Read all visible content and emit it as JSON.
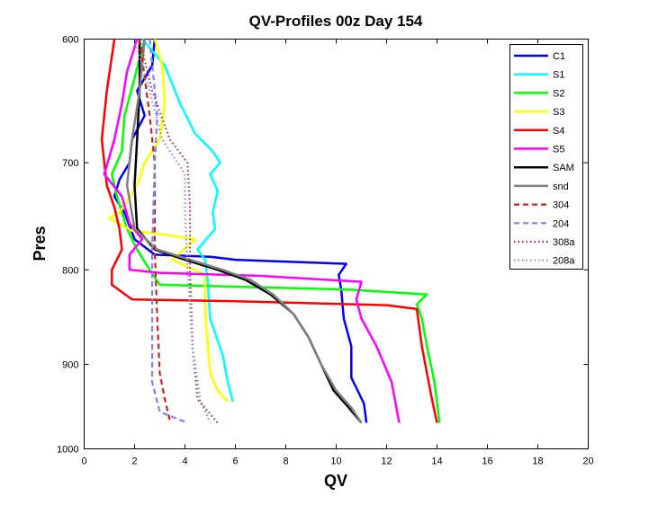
{
  "chart_data": {
    "type": "line",
    "title": "QV-Profiles 00z Day 154",
    "xlabel": "QV",
    "ylabel": "Pres",
    "xlim": [
      0,
      20
    ],
    "ylim": [
      1000,
      600
    ],
    "y_scale": "log",
    "y_inverted": true,
    "grid": false,
    "legend_position": "top-right",
    "xticks": [
      "0",
      "2",
      "4",
      "6",
      "8",
      "10",
      "12",
      "14",
      "16",
      "18",
      "20"
    ],
    "yticks": [
      "600",
      "700",
      "800",
      "900",
      "1000"
    ],
    "series": [
      {
        "name": "C1",
        "color": "#0000ff",
        "dash": "solid",
        "points": [
          [
            2.8,
            600
          ],
          [
            2.7,
            620
          ],
          [
            2.1,
            640
          ],
          [
            2.4,
            660
          ],
          [
            1.9,
            680
          ],
          [
            1.8,
            700
          ],
          [
            1.4,
            715
          ],
          [
            1.2,
            730
          ],
          [
            1.6,
            745
          ],
          [
            2.0,
            770
          ],
          [
            2.8,
            785
          ],
          [
            5.0,
            787
          ],
          [
            6.0,
            790
          ],
          [
            10.4,
            794
          ],
          [
            10.1,
            805
          ],
          [
            10.2,
            820
          ],
          [
            10.3,
            850
          ],
          [
            10.6,
            880
          ],
          [
            10.6,
            915
          ],
          [
            11.1,
            945
          ],
          [
            11.2,
            968
          ]
        ]
      },
      {
        "name": "S1",
        "color": "#00ffff",
        "dash": "solid",
        "points": [
          [
            2.3,
            600
          ],
          [
            3.2,
            620
          ],
          [
            3.8,
            650
          ],
          [
            4.4,
            675
          ],
          [
            5.1,
            690
          ],
          [
            5.4,
            700
          ],
          [
            5.0,
            710
          ],
          [
            5.3,
            725
          ],
          [
            5.1,
            745
          ],
          [
            5.2,
            760
          ],
          [
            4.5,
            780
          ],
          [
            4.8,
            790
          ],
          [
            4.9,
            810
          ],
          [
            5.0,
            850
          ],
          [
            5.5,
            890
          ],
          [
            5.7,
            920
          ],
          [
            5.9,
            943
          ]
        ]
      },
      {
        "name": "S2",
        "color": "#00ff00",
        "dash": "solid",
        "points": [
          [
            2.4,
            600
          ],
          [
            2.0,
            630
          ],
          [
            1.6,
            660
          ],
          [
            1.5,
            690
          ],
          [
            1.1,
            710
          ],
          [
            1.3,
            730
          ],
          [
            1.7,
            760
          ],
          [
            2.1,
            780
          ],
          [
            2.6,
            800
          ],
          [
            3.0,
            815
          ],
          [
            10.5,
            820
          ],
          [
            13.6,
            825
          ],
          [
            13.2,
            835
          ],
          [
            13.4,
            850
          ],
          [
            13.6,
            880
          ],
          [
            13.9,
            920
          ],
          [
            14.1,
            968
          ]
        ]
      },
      {
        "name": "S3",
        "color": "#ffff00",
        "dash": "solid",
        "points": [
          [
            2.8,
            600
          ],
          [
            3.1,
            620
          ],
          [
            3.2,
            650
          ],
          [
            3.0,
            680
          ],
          [
            2.4,
            700
          ],
          [
            2.1,
            720
          ],
          [
            1.4,
            745
          ],
          [
            1.0,
            750
          ],
          [
            1.9,
            762
          ],
          [
            3.0,
            765
          ],
          [
            4.4,
            770
          ],
          [
            3.5,
            790
          ],
          [
            4.8,
            805
          ],
          [
            4.8,
            840
          ],
          [
            4.9,
            880
          ],
          [
            5.0,
            910
          ],
          [
            5.3,
            930
          ],
          [
            5.7,
            943
          ]
        ]
      },
      {
        "name": "S4",
        "color": "#ff0000",
        "dash": "solid",
        "points": [
          [
            1.2,
            600
          ],
          [
            0.9,
            640
          ],
          [
            0.7,
            680
          ],
          [
            0.8,
            700
          ],
          [
            0.9,
            720
          ],
          [
            1.2,
            740
          ],
          [
            1.4,
            760
          ],
          [
            1.5,
            780
          ],
          [
            1.1,
            800
          ],
          [
            1.1,
            815
          ],
          [
            1.9,
            830
          ],
          [
            6.0,
            832
          ],
          [
            12.0,
            836
          ],
          [
            13.2,
            840
          ],
          [
            13.3,
            860
          ],
          [
            13.4,
            880
          ],
          [
            13.6,
            910
          ],
          [
            13.8,
            940
          ],
          [
            14.0,
            968
          ]
        ]
      },
      {
        "name": "S5",
        "color": "#ff00ff",
        "dash": "solid",
        "points": [
          [
            2.1,
            600
          ],
          [
            1.7,
            625
          ],
          [
            1.5,
            650
          ],
          [
            1.2,
            680
          ],
          [
            0.8,
            710
          ],
          [
            1.5,
            730
          ],
          [
            1.8,
            755
          ],
          [
            2.3,
            770
          ],
          [
            1.8,
            785
          ],
          [
            1.8,
            800
          ],
          [
            3.0,
            803
          ],
          [
            7.0,
            806
          ],
          [
            11.0,
            812
          ],
          [
            10.8,
            830
          ],
          [
            11.0,
            850
          ],
          [
            11.6,
            880
          ],
          [
            12.2,
            920
          ],
          [
            12.5,
            968
          ]
        ]
      },
      {
        "name": "SAM",
        "color": "#000000",
        "dash": "solid",
        "points": [
          [
            2.2,
            600
          ],
          [
            2.2,
            640
          ],
          [
            2.1,
            680
          ],
          [
            2.0,
            720
          ],
          [
            2.1,
            760
          ],
          [
            2.8,
            780
          ],
          [
            4.0,
            790
          ],
          [
            5.3,
            800
          ],
          [
            6.4,
            810
          ],
          [
            7.4,
            825
          ],
          [
            8.3,
            845
          ],
          [
            8.9,
            870
          ],
          [
            9.4,
            900
          ],
          [
            9.9,
            930
          ],
          [
            10.5,
            950
          ],
          [
            11.0,
            968
          ]
        ]
      },
      {
        "name": "snd",
        "color": "#808080",
        "dash": "solid",
        "points": [
          [
            2.4,
            600
          ],
          [
            2.2,
            640
          ],
          [
            1.9,
            680
          ],
          [
            1.7,
            720
          ],
          [
            2.0,
            760
          ],
          [
            2.9,
            780
          ],
          [
            4.2,
            790
          ],
          [
            5.5,
            800
          ],
          [
            6.6,
            810
          ],
          [
            7.5,
            825
          ],
          [
            8.3,
            845
          ],
          [
            8.9,
            870
          ],
          [
            9.4,
            900
          ],
          [
            10.0,
            930
          ],
          [
            10.6,
            950
          ],
          [
            11.0,
            968
          ]
        ]
      },
      {
        "name": "304",
        "color": "#cc2222",
        "dash": "6,4",
        "points": [
          [
            2.2,
            600
          ],
          [
            2.6,
            660
          ],
          [
            2.8,
            700
          ],
          [
            2.8,
            780
          ],
          [
            2.9,
            850
          ],
          [
            3.0,
            910
          ],
          [
            3.2,
            940
          ],
          [
            3.4,
            965
          ]
        ]
      },
      {
        "name": "204",
        "color": "#8080ff",
        "dash": "6,4",
        "points": [
          [
            2.6,
            600
          ],
          [
            2.9,
            660
          ],
          [
            2.8,
            700
          ],
          [
            2.7,
            780
          ],
          [
            2.7,
            860
          ],
          [
            2.7,
            920
          ],
          [
            3.0,
            955
          ],
          [
            4.1,
            968
          ]
        ]
      },
      {
        "name": "308a",
        "color": "#993366",
        "dash": "1.5,3",
        "points": [
          [
            2.2,
            600
          ],
          [
            2.7,
            640
          ],
          [
            3.4,
            680
          ],
          [
            4.1,
            700
          ],
          [
            4.2,
            740
          ],
          [
            4.2,
            800
          ],
          [
            4.3,
            880
          ],
          [
            4.5,
            940
          ],
          [
            5.3,
            968
          ]
        ]
      },
      {
        "name": "208a",
        "color": "#9980e0",
        "dash": "1.5,3",
        "points": [
          [
            2.0,
            600
          ],
          [
            2.6,
            640
          ],
          [
            3.1,
            680
          ],
          [
            4.0,
            710
          ],
          [
            4.0,
            740
          ],
          [
            4.1,
            800
          ],
          [
            4.3,
            880
          ],
          [
            4.6,
            940
          ],
          [
            5.0,
            968
          ]
        ]
      }
    ]
  }
}
